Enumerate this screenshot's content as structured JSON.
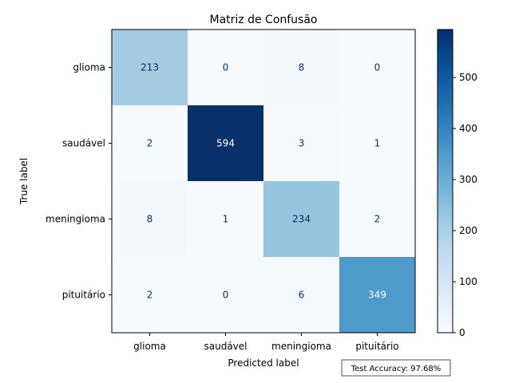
{
  "chart_data": {
    "type": "heatmap",
    "title": "Matriz de Confusão",
    "xlabel": "Predicted label",
    "ylabel": "True label",
    "x_categories": [
      "glioma",
      "saudável",
      "meningioma",
      "pituitário"
    ],
    "y_categories": [
      "glioma",
      "saudável",
      "meningioma",
      "pituitário"
    ],
    "matrix": [
      [
        213,
        0,
        8,
        0
      ],
      [
        2,
        594,
        3,
        1
      ],
      [
        8,
        1,
        234,
        2
      ],
      [
        2,
        0,
        6,
        349
      ]
    ],
    "colormap": "Blues",
    "vmin": 0,
    "vmax": 594,
    "colorbar_ticks": [
      0,
      100,
      200,
      300,
      400,
      500
    ],
    "annotation": "Test Accuracy: 97.68%",
    "colors": {
      "light_text": "#ffffff",
      "dark_text": "#08306b",
      "frame": "#000000"
    }
  }
}
